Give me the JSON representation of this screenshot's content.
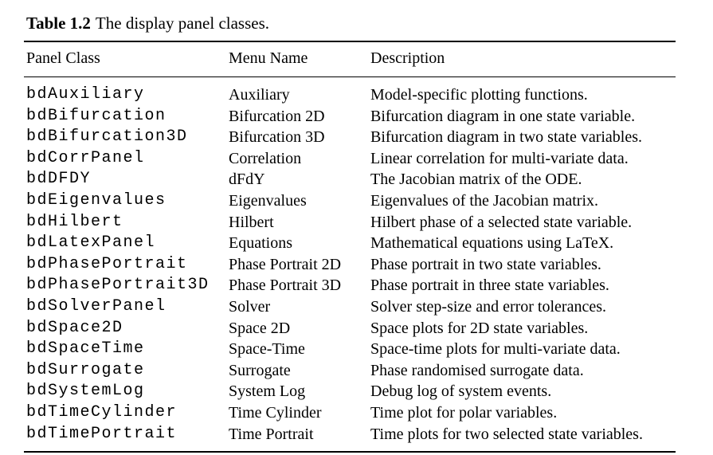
{
  "caption": {
    "label": "Table 1.2",
    "text": "The display panel classes."
  },
  "header": {
    "col1": "Panel Class",
    "col2": "Menu Name",
    "col3": "Description"
  },
  "rows": [
    {
      "class": "bdAuxiliary",
      "menu": "Auxiliary",
      "description": "Model-specific plotting functions."
    },
    {
      "class": "bdBifurcation",
      "menu": "Bifurcation 2D",
      "description": "Bifurcation diagram in one state variable."
    },
    {
      "class": "bdBifurcation3D",
      "menu": "Bifurcation 3D",
      "description": "Bifurcation diagram in two state variables."
    },
    {
      "class": "bdCorrPanel",
      "menu": "Correlation",
      "description": "Linear correlation for multi-variate data."
    },
    {
      "class": "bdDFDY",
      "menu": "dFdY",
      "description": "The Jacobian matrix of the ODE."
    },
    {
      "class": "bdEigenvalues",
      "menu": "Eigenvalues",
      "description": "Eigenvalues of the Jacobian matrix."
    },
    {
      "class": "bdHilbert",
      "menu": "Hilbert",
      "description": "Hilbert phase of a selected state variable."
    },
    {
      "class": "bdLatexPanel",
      "menu": "Equations",
      "description": "Mathematical equations using LaTeX."
    },
    {
      "class": "bdPhasePortrait",
      "menu": "Phase Portrait 2D",
      "description": "Phase portrait in two state variables."
    },
    {
      "class": "bdPhasePortrait3D",
      "menu": "Phase Portrait 3D",
      "description": "Phase portrait in three state variables."
    },
    {
      "class": "bdSolverPanel",
      "menu": "Solver",
      "description": "Solver step-size and error tolerances."
    },
    {
      "class": "bdSpace2D",
      "menu": "Space 2D",
      "description": "Space plots for 2D state variables."
    },
    {
      "class": "bdSpaceTime",
      "menu": "Space-Time",
      "description": "Space-time plots for multi-variate data."
    },
    {
      "class": "bdSurrogate",
      "menu": "Surrogate",
      "description": "Phase randomised surrogate data."
    },
    {
      "class": "bdSystemLog",
      "menu": "System Log",
      "description": "Debug log of system events."
    },
    {
      "class": "bdTimeCylinder",
      "menu": "Time Cylinder",
      "description": "Time plot for polar variables."
    },
    {
      "class": "bdTimePortrait",
      "menu": "Time Portrait",
      "description": "Time plots for two selected state variables."
    }
  ]
}
